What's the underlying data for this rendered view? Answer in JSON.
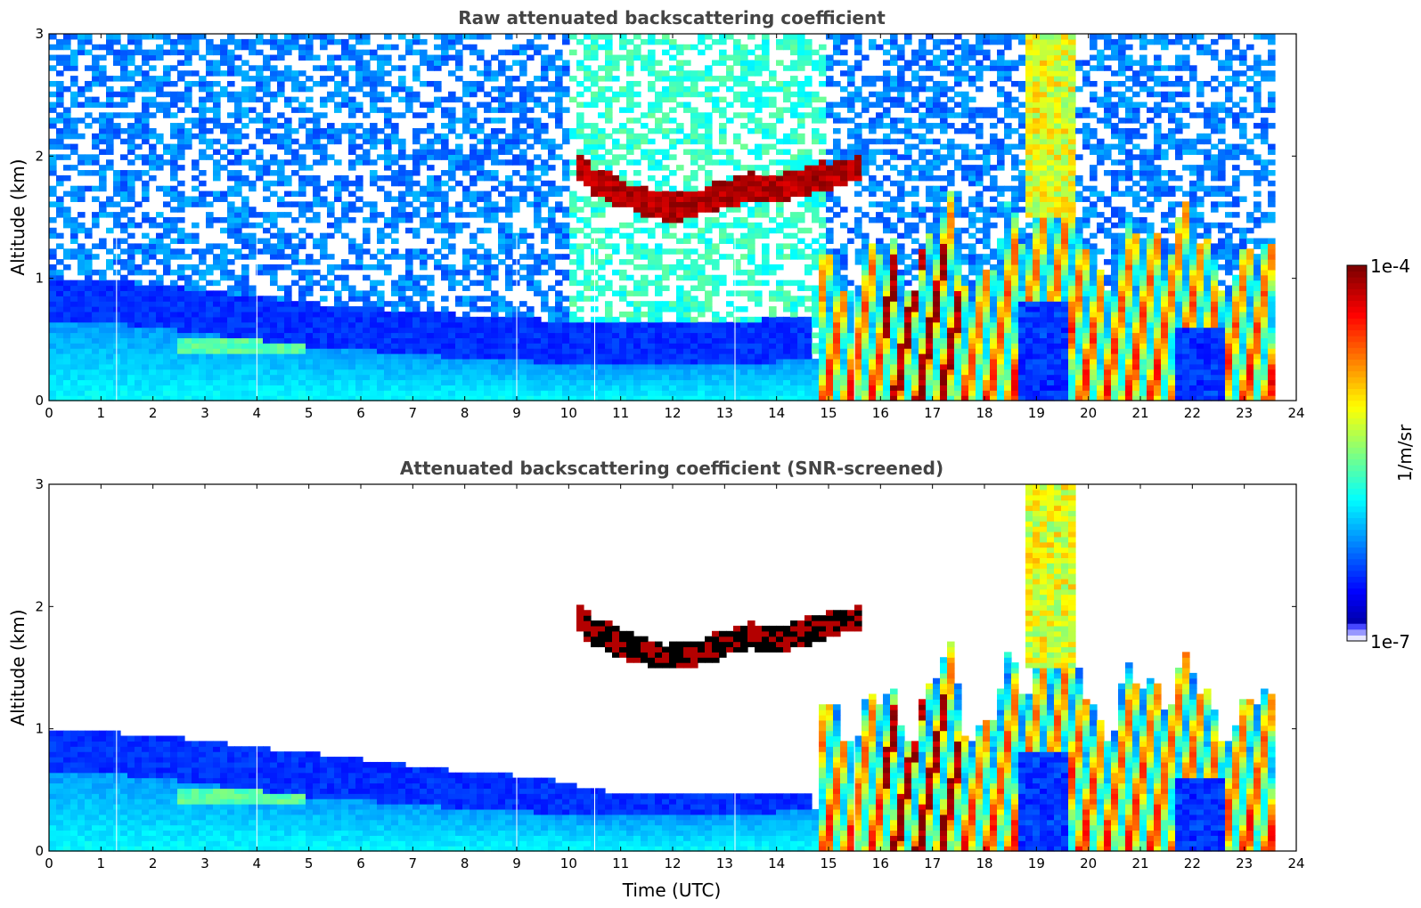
{
  "chart_data": [
    {
      "type": "heatmap",
      "title": "Raw attenuated backscattering coefficient",
      "xlabel": "",
      "ylabel": "Altitude (km)",
      "xlim": [
        0,
        24
      ],
      "ylim": [
        0,
        3
      ],
      "xticks": [
        "0",
        "1",
        "2",
        "3",
        "4",
        "5",
        "6",
        "7",
        "8",
        "9",
        "10",
        "11",
        "12",
        "13",
        "14",
        "15",
        "16",
        "17",
        "18",
        "19",
        "20",
        "21",
        "22",
        "23",
        "24"
      ],
      "yticks": [
        "0",
        "1",
        "2",
        "3"
      ],
      "data_end_hour": 23.65,
      "features": {
        "boundary_layer": [
          [
            0,
            0.65
          ],
          [
            1,
            0.65
          ],
          [
            2,
            0.6
          ],
          [
            3,
            0.55
          ],
          [
            4,
            0.5
          ],
          [
            5,
            0.45
          ],
          [
            6,
            0.42
          ],
          [
            7,
            0.38
          ],
          [
            8,
            0.35
          ],
          [
            9,
            0.33
          ],
          [
            10,
            0.3
          ],
          [
            11,
            0.28
          ],
          [
            12,
            0.28
          ],
          [
            13,
            0.3
          ],
          [
            14,
            0.32
          ],
          [
            14.7,
            0.35
          ]
        ],
        "cloud_layer_km": [
          [
            10.1,
            1.95
          ],
          [
            10.5,
            1.8
          ],
          [
            11,
            1.7
          ],
          [
            11.5,
            1.62
          ],
          [
            12,
            1.58
          ],
          [
            12.5,
            1.62
          ],
          [
            13,
            1.7
          ],
          [
            13.5,
            1.75
          ],
          [
            14,
            1.72
          ],
          [
            14.5,
            1.8
          ],
          [
            15,
            1.85
          ],
          [
            15.5,
            1.9
          ]
        ],
        "convective_plumes_hours": [
          [
            14.8,
            15.8
          ],
          [
            15.8,
            17.5
          ],
          [
            17.5,
            18.5
          ],
          [
            18.5,
            19.8
          ],
          [
            19.8,
            21
          ],
          [
            21,
            22.5
          ],
          [
            22.5,
            23.65
          ]
        ]
      }
    },
    {
      "type": "heatmap",
      "title": "Attenuated backscattering coefficient (SNR-screened)",
      "xlabel": "Time (UTC)",
      "ylabel": "Altitude (km)",
      "xlim": [
        0,
        24
      ],
      "ylim": [
        0,
        3
      ],
      "xticks": [
        "0",
        "1",
        "2",
        "3",
        "4",
        "5",
        "6",
        "7",
        "8",
        "9",
        "10",
        "11",
        "12",
        "13",
        "14",
        "15",
        "16",
        "17",
        "18",
        "19",
        "20",
        "21",
        "22",
        "23",
        "24"
      ],
      "yticks": [
        "0",
        "1",
        "2",
        "3"
      ],
      "data_end_hour": 23.65,
      "features": {
        "signal_top_km": [
          [
            0,
            1.0
          ],
          [
            2,
            0.95
          ],
          [
            4,
            0.85
          ],
          [
            6,
            0.75
          ],
          [
            8,
            0.65
          ],
          [
            9.5,
            0.6
          ],
          [
            10.5,
            0.5
          ],
          [
            11.5,
            0.45
          ],
          [
            14.7,
            0.45
          ]
        ],
        "cloud_layer_km": [
          [
            10.1,
            1.95
          ],
          [
            10.5,
            1.8
          ],
          [
            11,
            1.7
          ],
          [
            11.5,
            1.62
          ],
          [
            12,
            1.58
          ],
          [
            12.5,
            1.62
          ],
          [
            13,
            1.7
          ],
          [
            13.5,
            1.75
          ],
          [
            14,
            1.72
          ],
          [
            14.5,
            1.8
          ],
          [
            15,
            1.85
          ],
          [
            15.5,
            1.9
          ]
        ]
      }
    }
  ],
  "colorbar": {
    "max_label": "1e-4",
    "min_label": "1e-7",
    "unit_label": "1/m/sr"
  },
  "colors": {
    "jet_dark_red": "#800000",
    "jet_yellow": "#ffff00",
    "jet_cyan": "#00ffff",
    "jet_blue": "#0000ff",
    "noise_white": "#ffffff"
  }
}
